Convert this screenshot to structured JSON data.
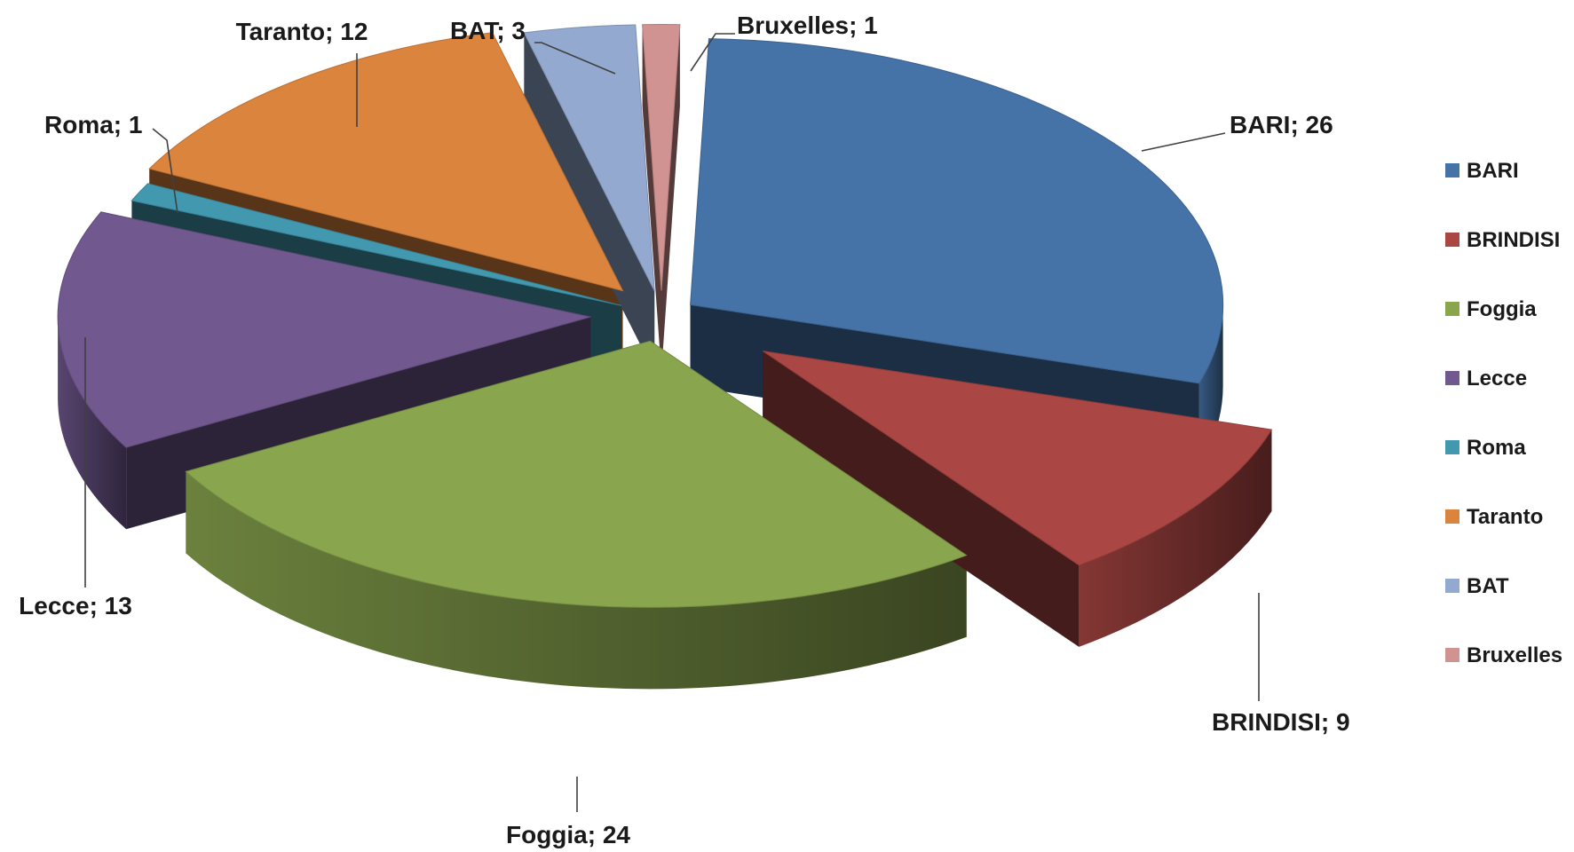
{
  "chart_data": {
    "type": "pie",
    "variant": "3d-exploded",
    "title": "",
    "legend_position": "right",
    "label_format": "{category}; {value}",
    "series": [
      {
        "values": [
          26,
          9,
          24,
          13,
          1,
          12,
          3,
          1
        ]
      }
    ],
    "categories": [
      "BARI",
      "BRINDISI",
      "Foggia",
      "Lecce",
      "Roma",
      "Taranto",
      "BAT",
      "Bruxelles"
    ],
    "data_labels": [
      "BARI; 26",
      "BRINDISI;  9",
      "Foggia; 24",
      "Lecce; 13",
      "Roma; 1",
      "Taranto; 12",
      "BAT; 3",
      "Bruxelles; 1"
    ],
    "colors": [
      "#4572A7",
      "#AA4643",
      "#89A54E",
      "#71588F",
      "#4198AF",
      "#DB843D",
      "#93A9CF",
      "#D19392"
    ]
  }
}
